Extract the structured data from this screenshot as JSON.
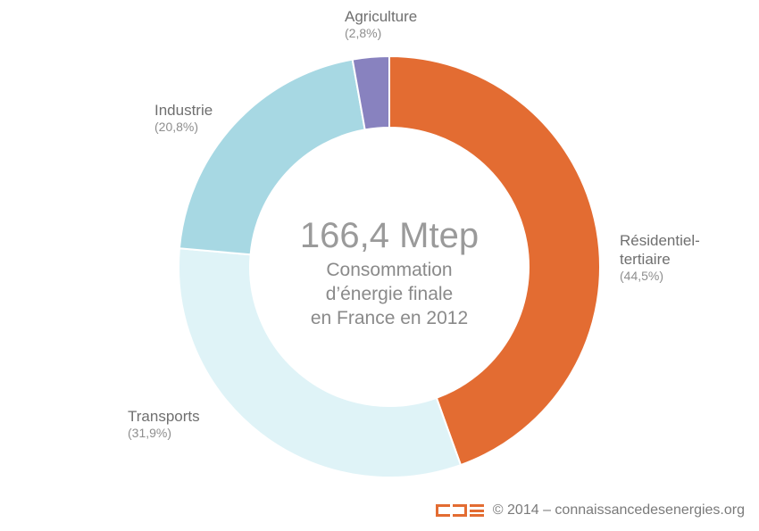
{
  "chart_data": {
    "type": "pie",
    "center": {
      "value": "166,4 Mtep",
      "caption_lines": [
        "Consommation",
        "d’énergie finale",
        "en France en 2012"
      ]
    },
    "slices": [
      {
        "name_lines": [
          "Résidentiel-",
          "tertiaire"
        ],
        "pct_label": "(44,5%)",
        "value": 44.5,
        "color": "#e36c32",
        "label_anchor": "start"
      },
      {
        "name_lines": [
          "Transports"
        ],
        "pct_label": "(31,9%)",
        "value": 31.9,
        "color": "#dff3f7",
        "label_anchor": "start"
      },
      {
        "name_lines": [
          "Industrie"
        ],
        "pct_label": "(20,8%)",
        "value": 20.8,
        "color": "#a7d8e3",
        "label_anchor": "start"
      },
      {
        "name_lines": [
          "Agriculture"
        ],
        "pct_label": "(2,8%)",
        "value": 2.8,
        "color": "#8882bf",
        "label_anchor": "start"
      }
    ]
  },
  "footer": {
    "copyright": "© 2014 – connaissancedesenergies.org"
  }
}
